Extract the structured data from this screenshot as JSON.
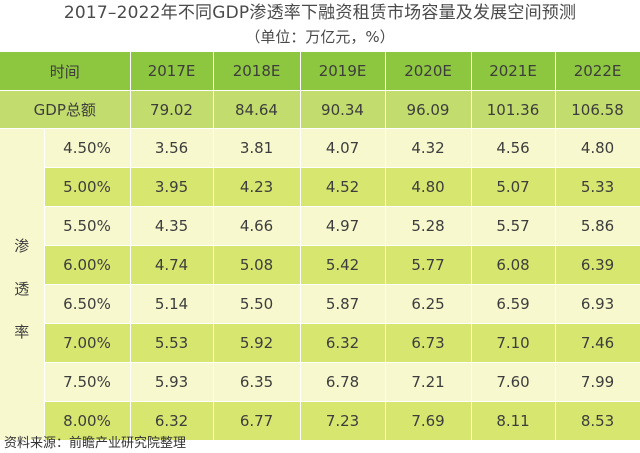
{
  "title": "2017–2022年不同GDP渗透率下融资租赁市场容量及发展空间预测",
  "subtitle": "（单位：万亿元，%）",
  "header": {
    "col0": "时间",
    "years": [
      "2017E",
      "2018E",
      "2019E",
      "2020E",
      "2021E",
      "2022E"
    ]
  },
  "gdp_row": {
    "label": "GDP总额",
    "values": [
      "79.02",
      "84.64",
      "90.34",
      "96.09",
      "101.36",
      "106.58"
    ]
  },
  "side_label": [
    "渗",
    "透",
    "率"
  ],
  "rows": [
    {
      "rate": "4.50%",
      "values": [
        "3.56",
        "3.81",
        "4.07",
        "4.32",
        "4.56",
        "4.80"
      ]
    },
    {
      "rate": "5.00%",
      "values": [
        "3.95",
        "4.23",
        "4.52",
        "4.80",
        "5.07",
        "5.33"
      ]
    },
    {
      "rate": "5.50%",
      "values": [
        "4.35",
        "4.66",
        "4.97",
        "5.28",
        "5.57",
        "5.86"
      ]
    },
    {
      "rate": "6.00%",
      "values": [
        "4.74",
        "5.08",
        "5.42",
        "5.77",
        "6.08",
        "6.39"
      ]
    },
    {
      "rate": "6.50%",
      "values": [
        "5.14",
        "5.50",
        "5.87",
        "6.25",
        "6.59",
        "6.93"
      ]
    },
    {
      "rate": "7.00%",
      "values": [
        "5.53",
        "5.92",
        "6.32",
        "6.73",
        "7.10",
        "7.46"
      ]
    },
    {
      "rate": "7.50%",
      "values": [
        "5.93",
        "6.35",
        "6.78",
        "7.21",
        "7.60",
        "7.99"
      ]
    },
    {
      "rate": "8.00%",
      "values": [
        "6.32",
        "6.77",
        "7.23",
        "7.69",
        "8.11",
        "8.53"
      ]
    }
  ],
  "source": "资料来源：前瞻产业研究院整理"
}
